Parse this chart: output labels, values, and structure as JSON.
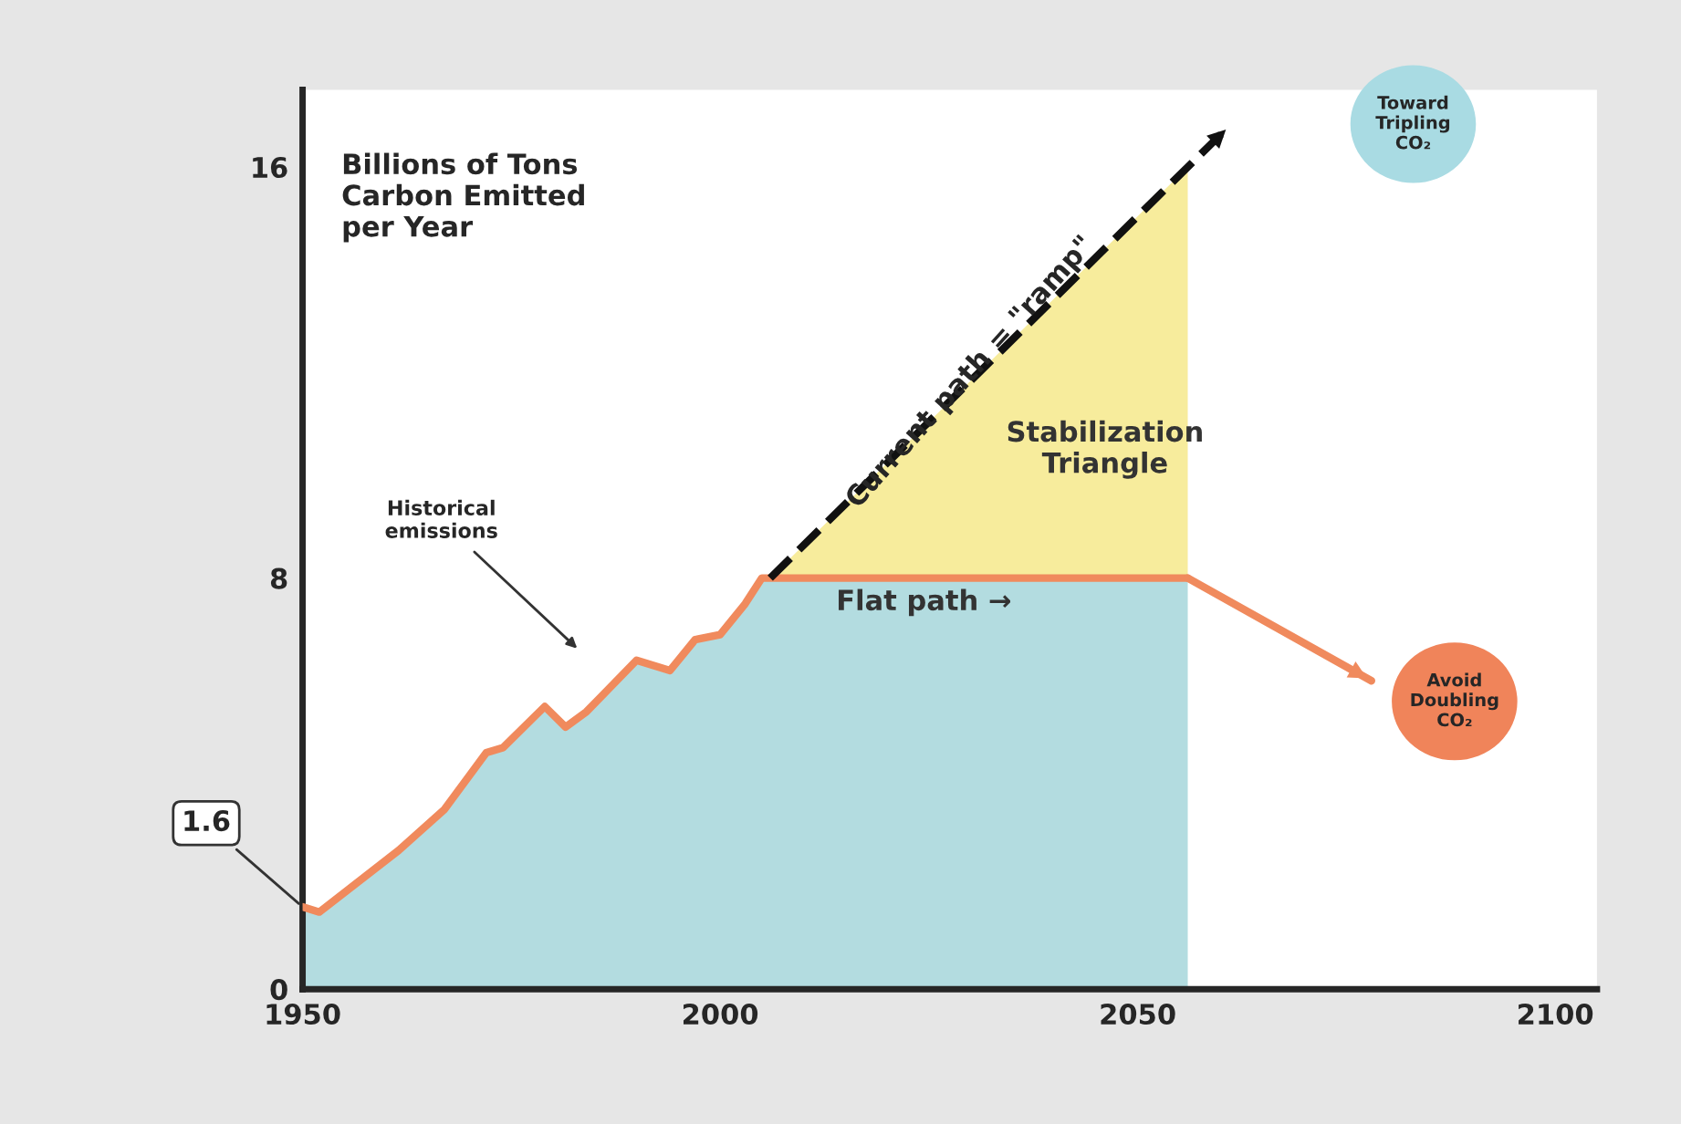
{
  "chart_data": {
    "type": "area",
    "ylabel": "Billions of Tons\nCarbon Emitted\nper Year",
    "xlim": [
      1950,
      2105
    ],
    "ylim": [
      0,
      17.5
    ],
    "xticks": [
      1950,
      2000,
      2050,
      2100
    ],
    "yticks": [
      0,
      8,
      16
    ],
    "grid": false,
    "legend": false,
    "series": [
      {
        "color": "#b3dce0",
        "x": [
          1950,
          1952,
          1961.5,
          1967,
          1972,
          1974,
          1979,
          1981.5,
          1984,
          1990,
          1994,
          1997,
          2000,
          2003,
          2005,
          2056
        ],
        "values": [
          1.6,
          1.5,
          2.7,
          3.5,
          4.6,
          4.7,
          5.5,
          5.1,
          5.4,
          6.4,
          6.2,
          6.8,
          6.9,
          7.5,
          8.0,
          8.0
        ]
      },
      {
        "color": "#f7ec9c",
        "x": [
          2006,
          2056
        ],
        "values": [
          8.0,
          16.0
        ]
      },
      {
        "type": "line",
        "color": "#f08a5d",
        "x": [
          1950,
          1952,
          1961.5,
          1967,
          1972,
          1974,
          1979,
          1981.5,
          1984,
          1990,
          1994,
          1997,
          2000,
          2003,
          2005,
          2056
        ],
        "values": [
          1.6,
          1.5,
          2.7,
          3.5,
          4.6,
          4.7,
          5.5,
          5.1,
          5.4,
          6.4,
          6.2,
          6.8,
          6.9,
          7.5,
          8.0,
          8.0
        ]
      },
      {
        "type": "line",
        "color": "#f08a5d",
        "x": [
          2056,
          2078
        ],
        "values": [
          8.0,
          6.0
        ]
      },
      {
        "type": "line",
        "color": "#111111",
        "line_style": "dashed",
        "x": [
          2006,
          2061
        ],
        "values": [
          8.0,
          16.8
        ]
      }
    ],
    "annotations": [
      {
        "text": "1.6",
        "x": 1950,
        "y": 1.6
      },
      "Historical\nemissions",
      {
        "text": "Current path = \"ramp\"",
        "x": 2030,
        "y": 12
      },
      "Stabilization\nTriangle",
      "Flat path →",
      "Toward\nTripling\nCO₂",
      "Avoid\nDoubling\nCO₂"
    ]
  }
}
